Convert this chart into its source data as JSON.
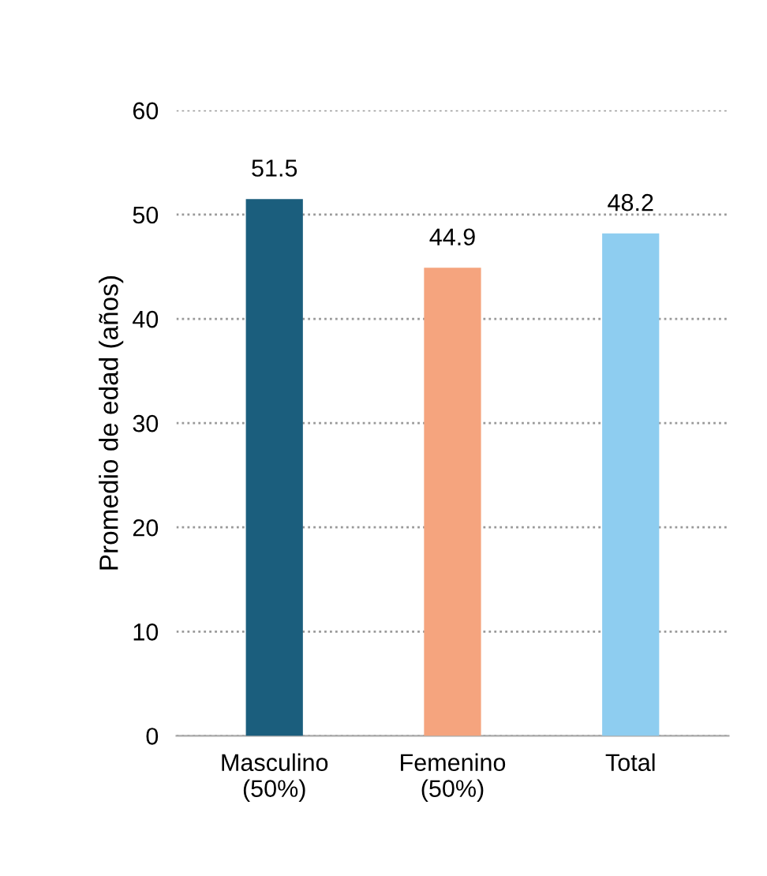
{
  "chart_data": {
    "type": "bar",
    "ylabel": "Promedio de edad (años)",
    "categories": [
      "Masculino\n(50%)",
      "Femenino\n(50%)",
      "Total"
    ],
    "values": [
      51.5,
      44.9,
      48.2
    ],
    "colors": [
      "#1b5e7d",
      "#f5a47e",
      "#8ecdf0"
    ],
    "ylim": [
      0,
      60
    ],
    "yticks": [
      0,
      10,
      20,
      30,
      40,
      50,
      60
    ],
    "grid": "y",
    "data_labels": true
  }
}
